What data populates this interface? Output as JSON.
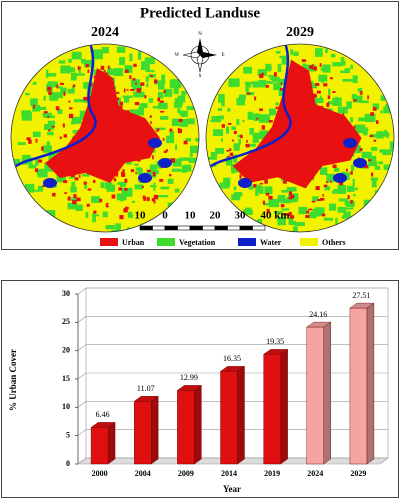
{
  "map": {
    "title": "Predicted Landuse",
    "panels": [
      "2024",
      "2029"
    ],
    "compass": [
      "N",
      "E",
      "S",
      "W"
    ],
    "scale_labels": [
      "10",
      "0",
      "10",
      "20",
      "30",
      "40 km"
    ],
    "legend": [
      {
        "label": "Urban",
        "color": "#e81010"
      },
      {
        "label": "Vegetation",
        "color": "#3ddc2e"
      },
      {
        "label": "Water",
        "color": "#1020c8"
      },
      {
        "label": "Others",
        "color": "#f2f200"
      }
    ]
  },
  "chart_data": {
    "type": "bar3d",
    "x_label": "Year",
    "y_label": "% Urban Cover",
    "categories": [
      "2000",
      "2004",
      "2009",
      "2014",
      "2019",
      "2024",
      "2029"
    ],
    "values": [
      6.46,
      11.07,
      12.99,
      16.35,
      19.35,
      24.16,
      27.51
    ],
    "colors": [
      "#e01010",
      "#e01010",
      "#e01010",
      "#e01010",
      "#e01010",
      "#f5a3a3",
      "#f5a3a3"
    ],
    "ylim": [
      0,
      30
    ],
    "yticks": [
      0,
      5,
      10,
      15,
      20,
      25,
      30
    ],
    "grid": true
  }
}
